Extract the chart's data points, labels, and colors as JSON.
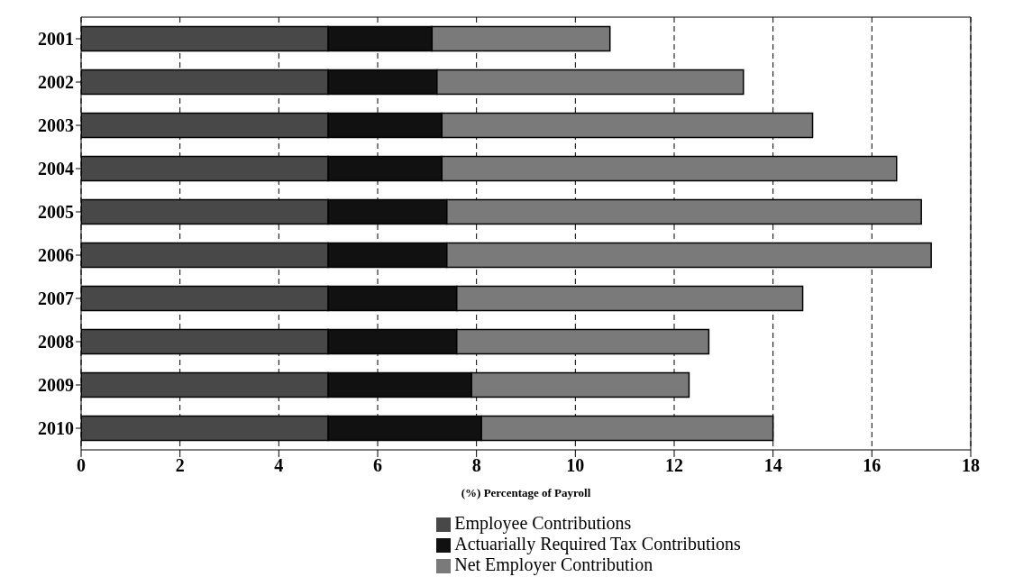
{
  "chart_data": {
    "type": "bar",
    "orientation": "horizontal",
    "stacked": true,
    "categories": [
      "2001",
      "2002",
      "2003",
      "2004",
      "2005",
      "2006",
      "2007",
      "2008",
      "2009",
      "2010"
    ],
    "series": [
      {
        "name": "Employee Contributions",
        "color": "#484848",
        "values": [
          5,
          5,
          5,
          5,
          5,
          5,
          5,
          5,
          5,
          5
        ]
      },
      {
        "name": "Actuarially Required Tax Contributions",
        "color": "#111111",
        "values": [
          2.1,
          2.2,
          2.3,
          2.3,
          2.4,
          2.4,
          2.6,
          2.6,
          2.9,
          3.1
        ]
      },
      {
        "name": "Net Employer Contribution",
        "color": "#7a7a7a",
        "values": [
          3.6,
          6.2,
          7.5,
          9.2,
          9.6,
          9.8,
          7.0,
          5.1,
          4.4,
          5.9
        ]
      }
    ],
    "xlabel": "(%) Percentage of Payroll",
    "xlim": [
      0,
      18
    ],
    "xticks": [
      0,
      2,
      4,
      6,
      8,
      10,
      12,
      14,
      16,
      18
    ],
    "grid": "x",
    "legend": "bottom"
  }
}
